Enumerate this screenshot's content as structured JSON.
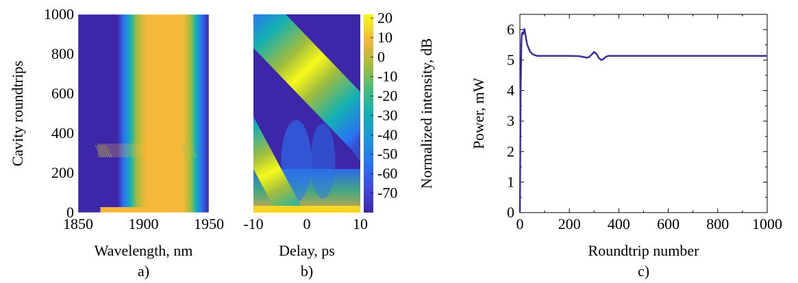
{
  "chart_data": [
    {
      "panel": "a)",
      "type": "heatmap",
      "xlabel": "Wavelength, nm",
      "ylabel": "Cavity roundtrips",
      "xlim": [
        1850,
        1950
      ],
      "ylim": [
        0,
        1000
      ],
      "xticks": [
        "1850",
        "1900",
        "1950"
      ],
      "yticks": [
        "0",
        "200",
        "400",
        "600",
        "800",
        "1000"
      ],
      "description_values": {
        "spectrum_center_nm": 1900,
        "plateau_edges_nm": [
          1872,
          1925
        ],
        "outer_edges_nm": [
          1866,
          1932
        ],
        "perturbation_roundtrip": 300
      }
    },
    {
      "panel": "b)",
      "type": "heatmap",
      "xlabel": "Delay, ps",
      "xlim": [
        -10,
        10
      ],
      "ylim": [
        0,
        1000
      ],
      "xticks": [
        "-10",
        "0",
        "10"
      ],
      "colorbar": {
        "label": "Normalized intensity, dB",
        "ticks": [
          "20",
          "10",
          "0",
          "-10",
          "-20",
          "-30",
          "-40",
          "-50",
          "-60",
          "-70"
        ],
        "range": [
          -80,
          22
        ]
      },
      "description_values": {
        "main_pulse_delay_start_ps": -10,
        "main_pulse_delay_end_ps": 10,
        "main_pulse_roundtrip_start": 1000,
        "main_pulse_roundtrip_end": 440
      }
    },
    {
      "panel": "c)",
      "type": "line",
      "xlabel": "Roundtrip number",
      "ylabel": "Power, mW",
      "xlim": [
        0,
        1000
      ],
      "ylim": [
        0,
        6.5
      ],
      "xticks": [
        "0",
        "200",
        "400",
        "600",
        "800",
        "1000"
      ],
      "yticks": [
        "0",
        "1",
        "2",
        "3",
        "4",
        "5",
        "6"
      ],
      "series": [
        {
          "color": "#3b2fa0",
          "x": [
            0,
            3,
            6,
            8,
            10,
            13,
            16,
            18,
            20,
            23,
            26,
            30,
            35,
            40,
            50,
            60,
            70,
            85,
            100,
            150,
            200,
            240,
            260,
            270,
            280,
            290,
            300,
            310,
            320,
            330,
            340,
            350,
            360,
            380,
            400,
            500,
            600,
            700,
            800,
            900,
            1000
          ],
          "y": [
            0,
            4.0,
            5.6,
            5.85,
            5.9,
            5.85,
            5.95,
            6.02,
            5.95,
            5.8,
            5.65,
            5.5,
            5.4,
            5.3,
            5.2,
            5.16,
            5.14,
            5.14,
            5.14,
            5.14,
            5.14,
            5.13,
            5.1,
            5.08,
            5.1,
            5.18,
            5.27,
            5.2,
            5.06,
            5.0,
            5.05,
            5.12,
            5.14,
            5.14,
            5.14,
            5.14,
            5.14,
            5.14,
            5.14,
            5.14,
            5.14
          ]
        }
      ]
    }
  ],
  "panel_labels": {
    "a": "a)",
    "b": "b)",
    "c": "c)"
  }
}
